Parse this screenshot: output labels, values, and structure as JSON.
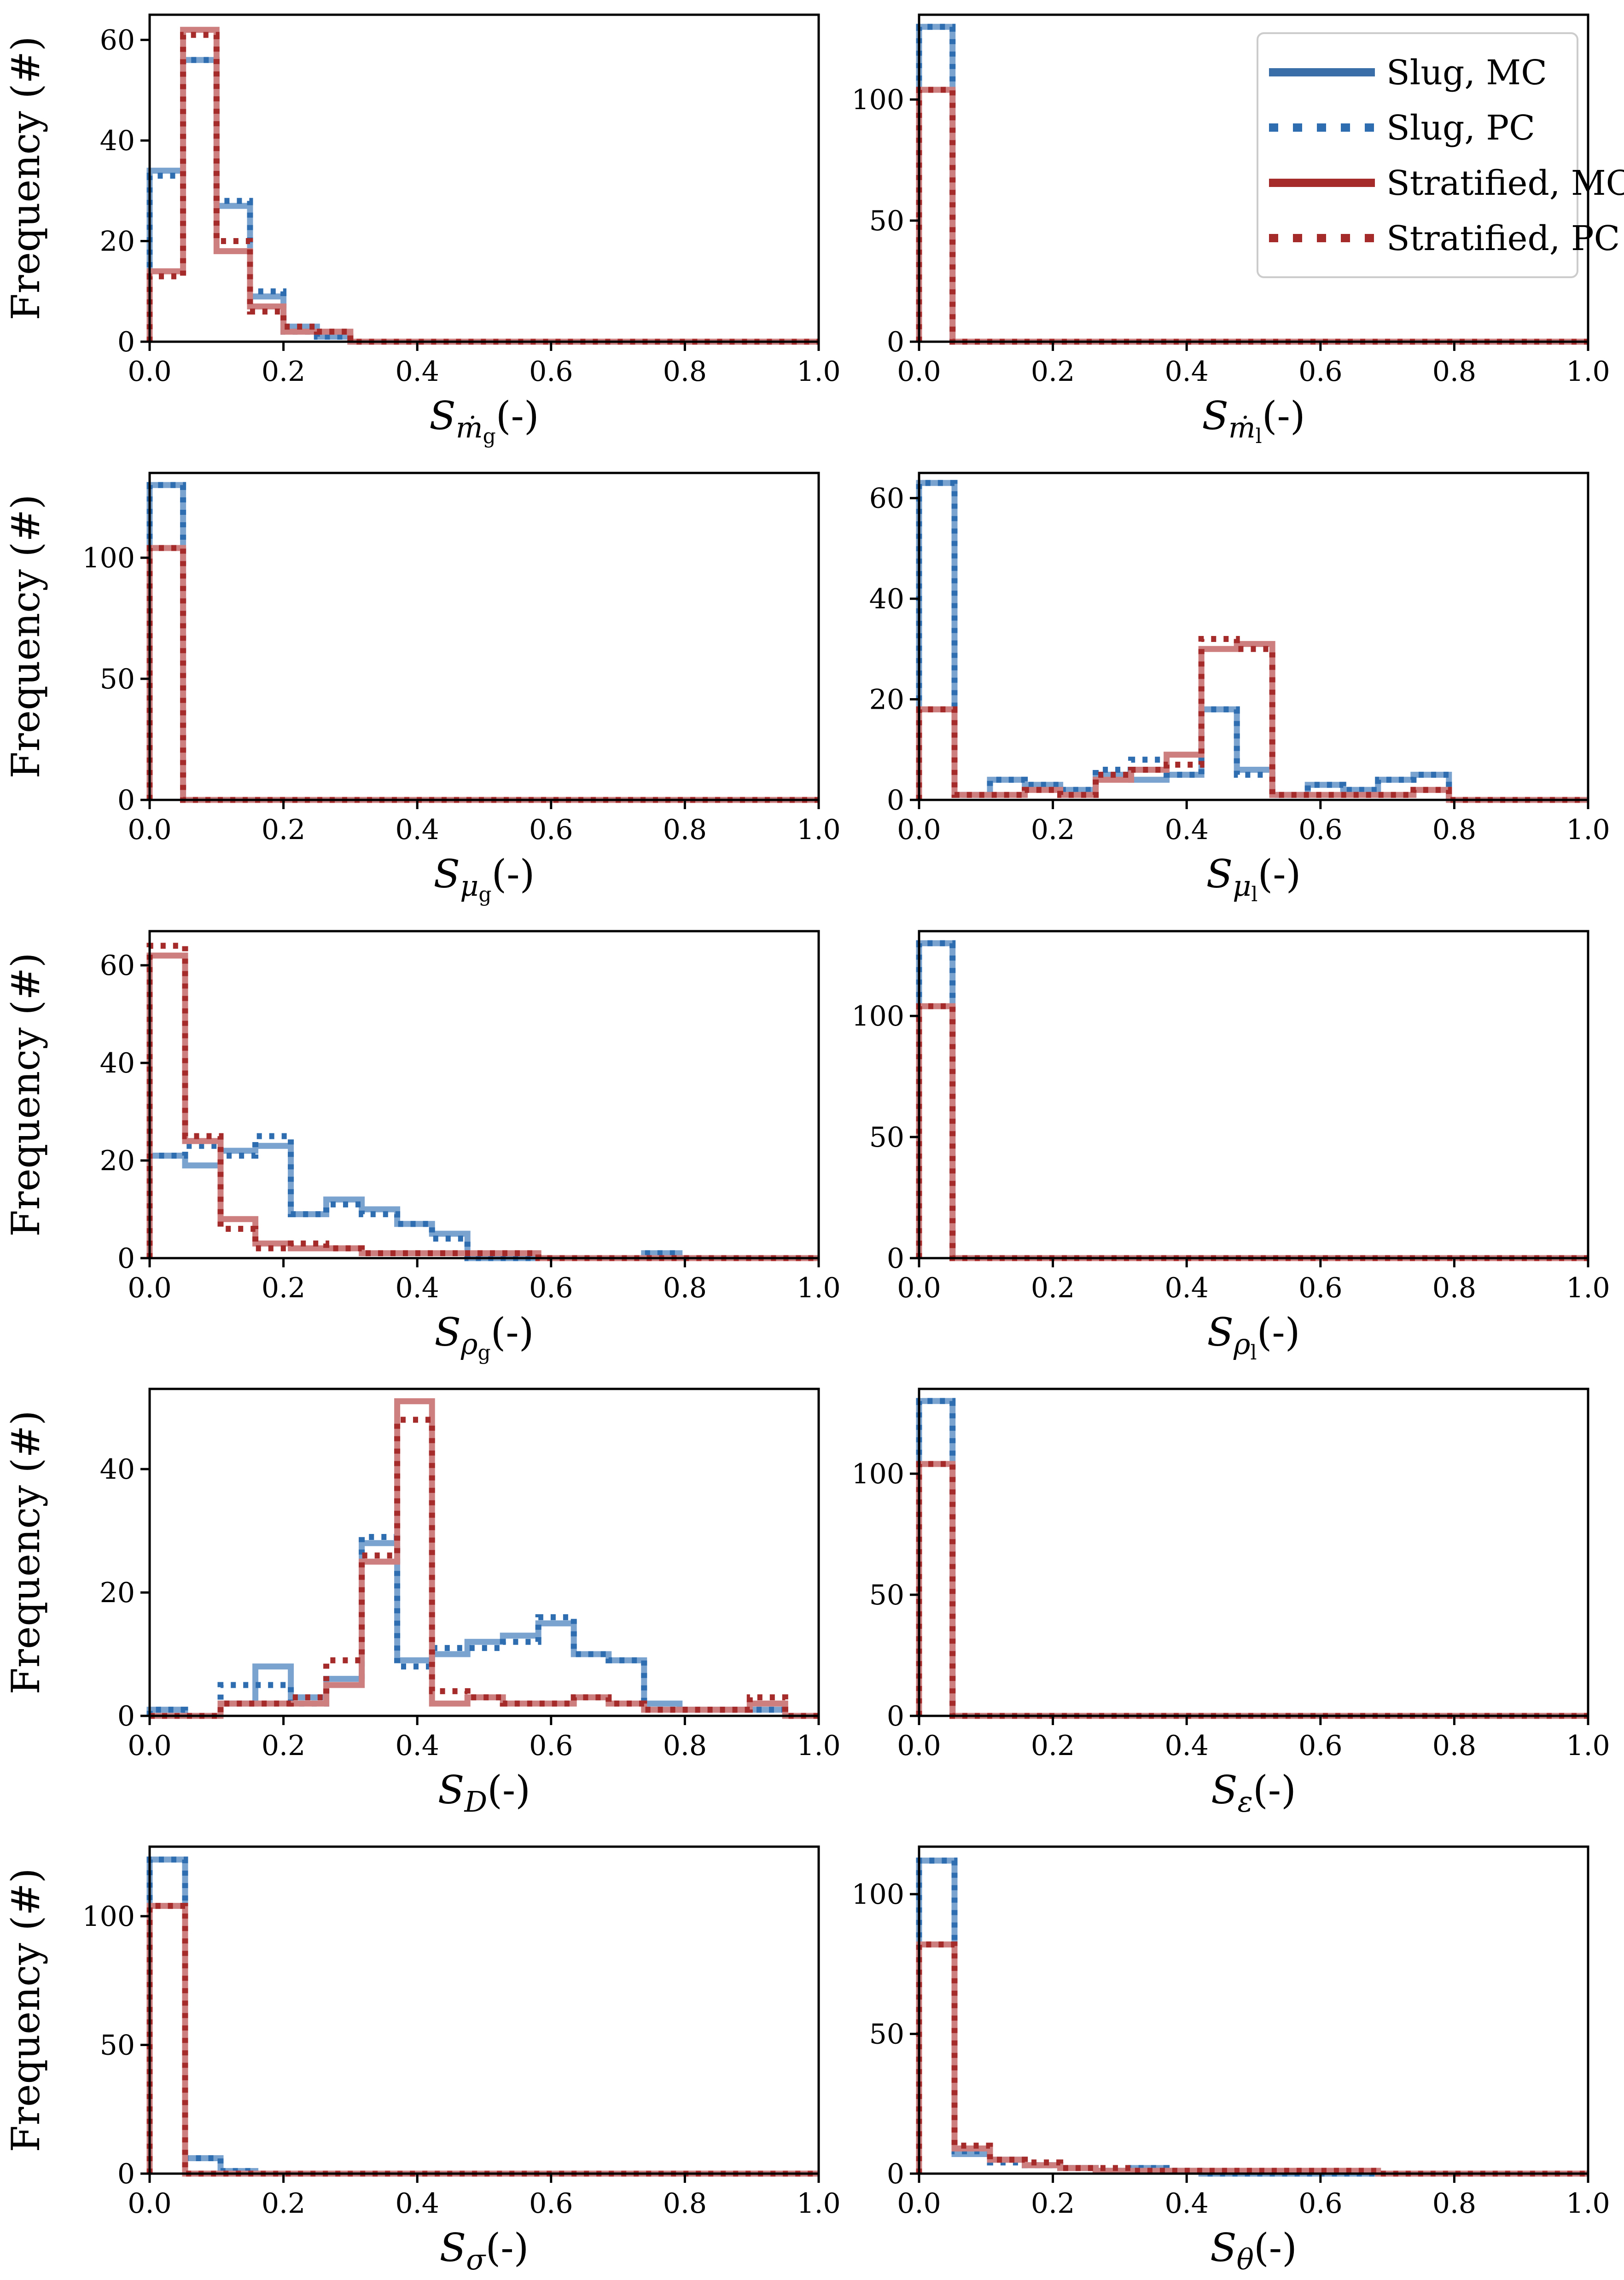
{
  "figure": {
    "ylabel_text": "Frequency (#)",
    "xlabel_unit": "(-)",
    "legend": [
      {
        "label": "Slug, MC",
        "color": "#3a6ea8",
        "style": "solid"
      },
      {
        "label": "Slug, PC",
        "color": "#2e6db0",
        "style": "dotted"
      },
      {
        "label": "Stratified, MC",
        "color": "#a52a2a",
        "style": "solid"
      },
      {
        "label": "Stratified, PC",
        "color": "#a52a2a",
        "style": "dotted"
      }
    ],
    "colors": {
      "slug_mc": "#7ba3cf",
      "slug_pc": "#2e6db0",
      "strat_mc": "#cd7f7f",
      "strat_pc": "#a52a2a"
    }
  },
  "chart_data": [
    {
      "type": "bar",
      "title": "",
      "xlabel_sym": "S",
      "xlabel_sub": "ṁ",
      "xlabel_subsub": "g",
      "ylabel": "Frequency (#)",
      "xlim": [
        0,
        1
      ],
      "ylim": [
        0,
        65
      ],
      "xticks": [
        "0.0",
        "0.2",
        "0.4",
        "0.6",
        "0.8",
        "1.0"
      ],
      "yticks": [
        0,
        20,
        40,
        60
      ],
      "ytick_labels": [
        "0",
        "20",
        "40",
        "60"
      ],
      "bin_edges": [
        0,
        0.05,
        0.1,
        0.15,
        0.2,
        0.25,
        0.3
      ],
      "series": [
        {
          "name": "Slug, MC",
          "values": [
            34,
            56,
            27,
            9,
            3,
            1
          ]
        },
        {
          "name": "Slug, PC",
          "values": [
            33,
            56,
            28,
            10,
            2,
            1
          ]
        },
        {
          "name": "Stratified, MC",
          "values": [
            14,
            62,
            18,
            7,
            2,
            2
          ]
        },
        {
          "name": "Stratified, PC",
          "values": [
            13,
            61,
            20,
            6,
            3,
            2
          ]
        }
      ]
    },
    {
      "type": "bar",
      "title": "",
      "xlabel_sym": "S",
      "xlabel_sub": "ṁ",
      "xlabel_subsub": "l",
      "ylabel": "",
      "xlim": [
        0,
        1
      ],
      "ylim": [
        0,
        135
      ],
      "xticks": [
        "0.0",
        "0.2",
        "0.4",
        "0.6",
        "0.8",
        "1.0"
      ],
      "yticks": [
        0,
        50,
        100
      ],
      "ytick_labels": [
        "0",
        "50",
        "100"
      ],
      "bin_edges": [
        0,
        0.05
      ],
      "series": [
        {
          "name": "Slug, MC",
          "values": [
            130
          ]
        },
        {
          "name": "Slug, PC",
          "values": [
            130
          ]
        },
        {
          "name": "Stratified, MC",
          "values": [
            104
          ]
        },
        {
          "name": "Stratified, PC",
          "values": [
            104
          ]
        }
      ],
      "legend": true
    },
    {
      "type": "bar",
      "title": "",
      "xlabel_sym": "S",
      "xlabel_sub": "μ",
      "xlabel_subsub": "g",
      "ylabel": "Frequency (#)",
      "xlim": [
        0,
        1
      ],
      "ylim": [
        0,
        135
      ],
      "xticks": [
        "0.0",
        "0.2",
        "0.4",
        "0.6",
        "0.8",
        "1.0"
      ],
      "yticks": [
        0,
        50,
        100
      ],
      "ytick_labels": [
        "0",
        "50",
        "100"
      ],
      "bin_edges": [
        0,
        0.05
      ],
      "series": [
        {
          "name": "Slug, MC",
          "values": [
            130
          ]
        },
        {
          "name": "Slug, PC",
          "values": [
            130
          ]
        },
        {
          "name": "Stratified, MC",
          "values": [
            104
          ]
        },
        {
          "name": "Stratified, PC",
          "values": [
            104
          ]
        }
      ]
    },
    {
      "type": "bar",
      "title": "",
      "xlabel_sym": "S",
      "xlabel_sub": "μ",
      "xlabel_subsub": "l",
      "ylabel": "",
      "xlim": [
        0,
        1
      ],
      "ylim": [
        0,
        65
      ],
      "xticks": [
        "0.0",
        "0.2",
        "0.4",
        "0.6",
        "0.8",
        "1.0"
      ],
      "yticks": [
        0,
        20,
        40,
        60
      ],
      "ytick_labels": [
        "0",
        "20",
        "40",
        "60"
      ],
      "bin_edges": [
        0,
        0.053,
        0.106,
        0.158,
        0.211,
        0.264,
        0.317,
        0.37,
        0.422,
        0.475,
        0.528,
        0.581,
        0.634,
        0.686,
        0.739,
        0.792
      ],
      "series": [
        {
          "name": "Slug, MC",
          "values": [
            63,
            1,
            4,
            3,
            2,
            5,
            4,
            5,
            18,
            6,
            1,
            3,
            2,
            4,
            5
          ]
        },
        {
          "name": "Slug, PC",
          "values": [
            63,
            1,
            4,
            3,
            2,
            6,
            8,
            5,
            18,
            5,
            1,
            3,
            2,
            4,
            5
          ]
        },
        {
          "name": "Stratified, MC",
          "values": [
            18,
            1,
            1,
            2,
            1,
            4,
            6,
            9,
            30,
            31,
            1,
            1,
            1,
            1,
            2
          ]
        },
        {
          "name": "Stratified, PC",
          "values": [
            18,
            1,
            1,
            2,
            1,
            5,
            6,
            7,
            32,
            30,
            1,
            1,
            1,
            1,
            2
          ]
        }
      ]
    },
    {
      "type": "bar",
      "title": "",
      "xlabel_sym": "S",
      "xlabel_sub": "ρ",
      "xlabel_subsub": "g",
      "ylabel": "Frequency (#)",
      "xlim": [
        0,
        1
      ],
      "ylim": [
        0,
        67
      ],
      "xticks": [
        "0.0",
        "0.2",
        "0.4",
        "0.6",
        "0.8",
        "1.0"
      ],
      "yticks": [
        0,
        20,
        40,
        60
      ],
      "ytick_labels": [
        "0",
        "20",
        "40",
        "60"
      ],
      "bin_edges": [
        0,
        0.053,
        0.106,
        0.158,
        0.211,
        0.264,
        0.317,
        0.37,
        0.422,
        0.475,
        0.528,
        0.581,
        0.634,
        0.686,
        0.739,
        0.792
      ],
      "series": [
        {
          "name": "Slug, MC",
          "values": [
            21,
            19,
            22,
            23,
            9,
            12,
            10,
            7,
            5,
            0,
            0,
            0,
            0,
            0,
            1
          ]
        },
        {
          "name": "Slug, PC",
          "values": [
            21,
            23,
            21,
            25,
            9,
            11,
            9,
            7,
            4,
            0,
            0,
            0,
            0,
            0,
            1
          ]
        },
        {
          "name": "Stratified, MC",
          "values": [
            62,
            24,
            8,
            3,
            2,
            2,
            1,
            1,
            1,
            1,
            1,
            0,
            0,
            0,
            0
          ]
        },
        {
          "name": "Stratified, PC",
          "values": [
            64,
            25,
            6,
            2,
            3,
            2,
            1,
            1,
            1,
            1,
            1,
            0,
            0,
            0,
            0
          ]
        }
      ]
    },
    {
      "type": "bar",
      "title": "",
      "xlabel_sym": "S",
      "xlabel_sub": "ρ",
      "xlabel_subsub": "l",
      "ylabel": "",
      "xlim": [
        0,
        1
      ],
      "ylim": [
        0,
        135
      ],
      "xticks": [
        "0.0",
        "0.2",
        "0.4",
        "0.6",
        "0.8",
        "1.0"
      ],
      "yticks": [
        0,
        50,
        100
      ],
      "ytick_labels": [
        "0",
        "50",
        "100"
      ],
      "bin_edges": [
        0,
        0.05
      ],
      "series": [
        {
          "name": "Slug, MC",
          "values": [
            130
          ]
        },
        {
          "name": "Slug, PC",
          "values": [
            130
          ]
        },
        {
          "name": "Stratified, MC",
          "values": [
            104
          ]
        },
        {
          "name": "Stratified, PC",
          "values": [
            104
          ]
        }
      ]
    },
    {
      "type": "bar",
      "title": "",
      "xlabel_sym": "S",
      "xlabel_sub": "D",
      "xlabel_subsub": "",
      "ylabel": "Frequency (#)",
      "xlim": [
        0,
        1
      ],
      "ylim": [
        0,
        53
      ],
      "xticks": [
        "0.0",
        "0.2",
        "0.4",
        "0.6",
        "0.8",
        "1.0"
      ],
      "yticks": [
        0,
        20,
        40
      ],
      "ytick_labels": [
        "0",
        "20",
        "40"
      ],
      "bin_edges": [
        0,
        0.053,
        0.106,
        0.158,
        0.211,
        0.264,
        0.317,
        0.37,
        0.422,
        0.475,
        0.528,
        0.581,
        0.634,
        0.686,
        0.739,
        0.792,
        0.844,
        0.897,
        0.95
      ],
      "series": [
        {
          "name": "Slug, MC",
          "values": [
            1,
            0,
            2,
            8,
            3,
            6,
            28,
            9,
            10,
            12,
            13,
            15,
            10,
            9,
            2,
            1,
            1,
            1
          ]
        },
        {
          "name": "Slug, PC",
          "values": [
            1,
            0,
            5,
            5,
            2,
            5,
            29,
            8,
            11,
            11,
            12,
            16,
            10,
            9,
            1,
            1,
            1,
            1
          ]
        },
        {
          "name": "Stratified, MC",
          "values": [
            0,
            0,
            2,
            2,
            2,
            5,
            25,
            51,
            2,
            3,
            2,
            2,
            3,
            2,
            1,
            1,
            1,
            2
          ]
        },
        {
          "name": "Stratified, PC",
          "values": [
            0,
            0,
            2,
            2,
            3,
            9,
            26,
            48,
            4,
            3,
            2,
            2,
            3,
            2,
            1,
            1,
            1,
            3
          ]
        }
      ]
    },
    {
      "type": "bar",
      "title": "",
      "xlabel_sym": "S",
      "xlabel_sub": "ε",
      "xlabel_subsub": "",
      "ylabel": "",
      "xlim": [
        0,
        1
      ],
      "ylim": [
        0,
        135
      ],
      "xticks": [
        "0.0",
        "0.2",
        "0.4",
        "0.6",
        "0.8",
        "1.0"
      ],
      "yticks": [
        0,
        50,
        100
      ],
      "ytick_labels": [
        "0",
        "50",
        "100"
      ],
      "bin_edges": [
        0,
        0.05
      ],
      "series": [
        {
          "name": "Slug, MC",
          "values": [
            130
          ]
        },
        {
          "name": "Slug, PC",
          "values": [
            130
          ]
        },
        {
          "name": "Stratified, MC",
          "values": [
            104
          ]
        },
        {
          "name": "Stratified, PC",
          "values": [
            104
          ]
        }
      ]
    },
    {
      "type": "bar",
      "title": "",
      "xlabel_sym": "S",
      "xlabel_sub": "σ",
      "xlabel_subsub": "",
      "ylabel": "Frequency (#)",
      "xlim": [
        0,
        1
      ],
      "ylim": [
        0,
        127
      ],
      "xticks": [
        "0.0",
        "0.2",
        "0.4",
        "0.6",
        "0.8",
        "1.0"
      ],
      "yticks": [
        0,
        50,
        100
      ],
      "ytick_labels": [
        "0",
        "50",
        "100"
      ],
      "bin_edges": [
        0,
        0.053,
        0.106,
        0.158
      ],
      "series": [
        {
          "name": "Slug, MC",
          "values": [
            122,
            6,
            1
          ]
        },
        {
          "name": "Slug, PC",
          "values": [
            122,
            6,
            1
          ]
        },
        {
          "name": "Stratified, MC",
          "values": [
            104,
            0,
            0
          ]
        },
        {
          "name": "Stratified, PC",
          "values": [
            104,
            0,
            0
          ]
        }
      ]
    },
    {
      "type": "bar",
      "title": "",
      "xlabel_sym": "S",
      "xlabel_sub": "θ",
      "xlabel_subsub": "",
      "ylabel": "",
      "xlim": [
        0,
        1
      ],
      "ylim": [
        0,
        117
      ],
      "xticks": [
        "0.0",
        "0.2",
        "0.4",
        "0.6",
        "0.8",
        "1.0"
      ],
      "yticks": [
        0,
        50,
        100
      ],
      "ytick_labels": [
        "0",
        "50",
        "100"
      ],
      "bin_edges": [
        0,
        0.053,
        0.106,
        0.158,
        0.211,
        0.264,
        0.317,
        0.37,
        0.422,
        0.475,
        0.528,
        0.581,
        0.634,
        0.686
      ],
      "series": [
        {
          "name": "Slug, MC",
          "values": [
            112,
            7,
            5,
            3,
            2,
            1,
            2,
            1,
            0,
            0,
            0,
            0,
            0
          ]
        },
        {
          "name": "Slug, PC",
          "values": [
            112,
            8,
            4,
            3,
            2,
            1,
            2,
            1,
            0,
            0,
            0,
            0,
            0
          ]
        },
        {
          "name": "Stratified, MC",
          "values": [
            82,
            9,
            5,
            3,
            2,
            1,
            1,
            1,
            1,
            1,
            1,
            1,
            1
          ]
        },
        {
          "name": "Stratified, PC",
          "values": [
            82,
            10,
            5,
            4,
            2,
            2,
            1,
            1,
            1,
            1,
            1,
            1,
            1
          ]
        }
      ]
    }
  ]
}
